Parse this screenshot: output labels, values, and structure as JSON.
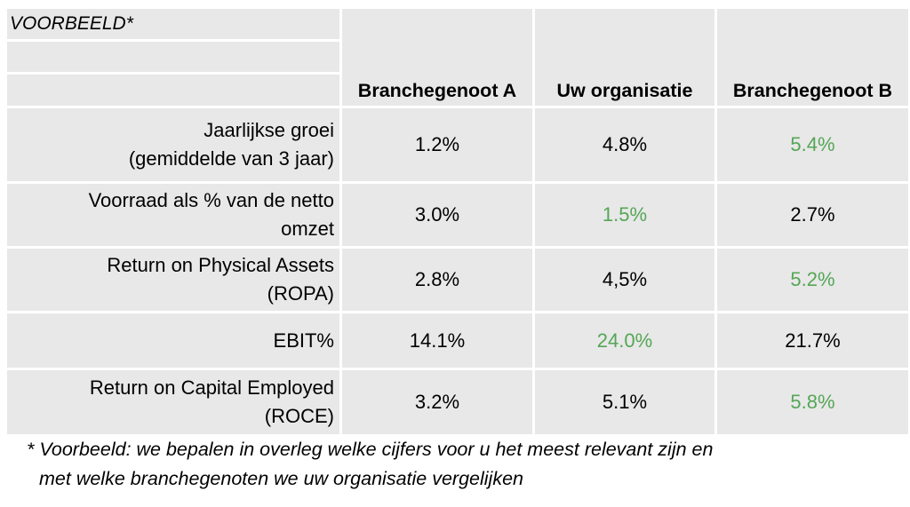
{
  "corner_label": "VOORBEELD*",
  "colors": {
    "highlight": "#55a656",
    "cell_bg": "#e8e8e8",
    "text": "#000000"
  },
  "table": {
    "headers": [
      "Branchegenoot A",
      "Uw organisatie",
      "Branchegenoot B"
    ],
    "rows": [
      {
        "label_lines": [
          "Jaarlijkse groei",
          "(gemiddelde van 3 jaar)"
        ],
        "values": [
          "1.2%",
          "4.8%",
          "5.4%"
        ],
        "highlight_index": 2
      },
      {
        "label_lines": [
          "Voorraad als % van de netto",
          "omzet"
        ],
        "values": [
          "3.0%",
          "1.5%",
          "2.7%"
        ],
        "highlight_index": 1
      },
      {
        "label_lines": [
          "Return on Physical Assets",
          "(ROPA)"
        ],
        "values": [
          "2.8%",
          "4,5%",
          "5.2%"
        ],
        "highlight_index": 2
      },
      {
        "label_lines": [
          "EBIT%"
        ],
        "values": [
          "14.1%",
          "24.0%",
          "21.7%"
        ],
        "highlight_index": 1
      },
      {
        "label_lines": [
          "Return on Capital Employed",
          "(ROCE)"
        ],
        "values": [
          "3.2%",
          "5.1%",
          "5.8%"
        ],
        "highlight_index": 2
      }
    ]
  },
  "footnote": {
    "line1": "* Voorbeeld: we bepalen in overleg welke cijfers voor u het meest relevant zijn en",
    "line2": "met welke branchegenoten we uw organisatie vergelijken"
  }
}
